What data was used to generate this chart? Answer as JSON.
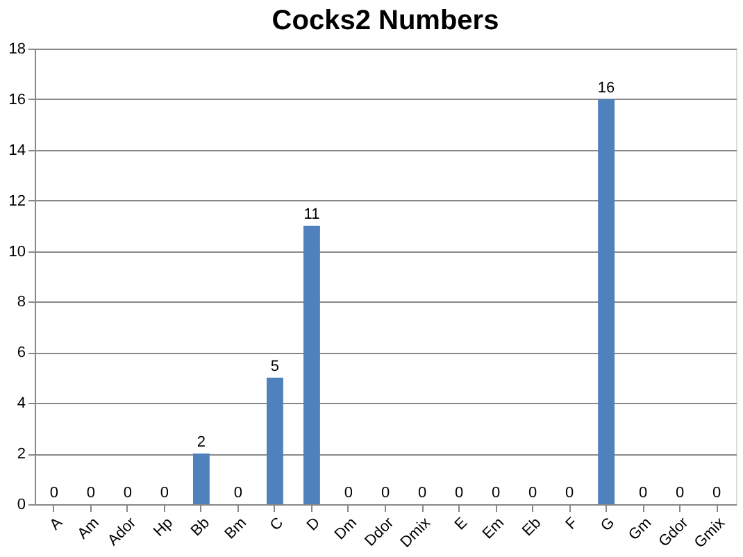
{
  "chart_data": {
    "type": "bar",
    "title": "Cocks2 Numbers",
    "categories": [
      "A",
      "Am",
      "Ador",
      "Hp",
      "Bb",
      "Bm",
      "C",
      "D",
      "Dm",
      "Ddor",
      "Dmix",
      "E",
      "Em",
      "Eb",
      "F",
      "G",
      "Gm",
      "Gdor",
      "Gmix"
    ],
    "values": [
      0,
      0,
      0,
      0,
      2,
      0,
      5,
      11,
      0,
      0,
      0,
      0,
      0,
      0,
      0,
      16,
      0,
      0,
      0
    ],
    "color": "#4f81bd",
    "ylim": [
      0,
      18
    ],
    "yticks": [
      0,
      2,
      4,
      6,
      8,
      10,
      12,
      14,
      16,
      18
    ],
    "grid": "y",
    "data_labels": true
  }
}
